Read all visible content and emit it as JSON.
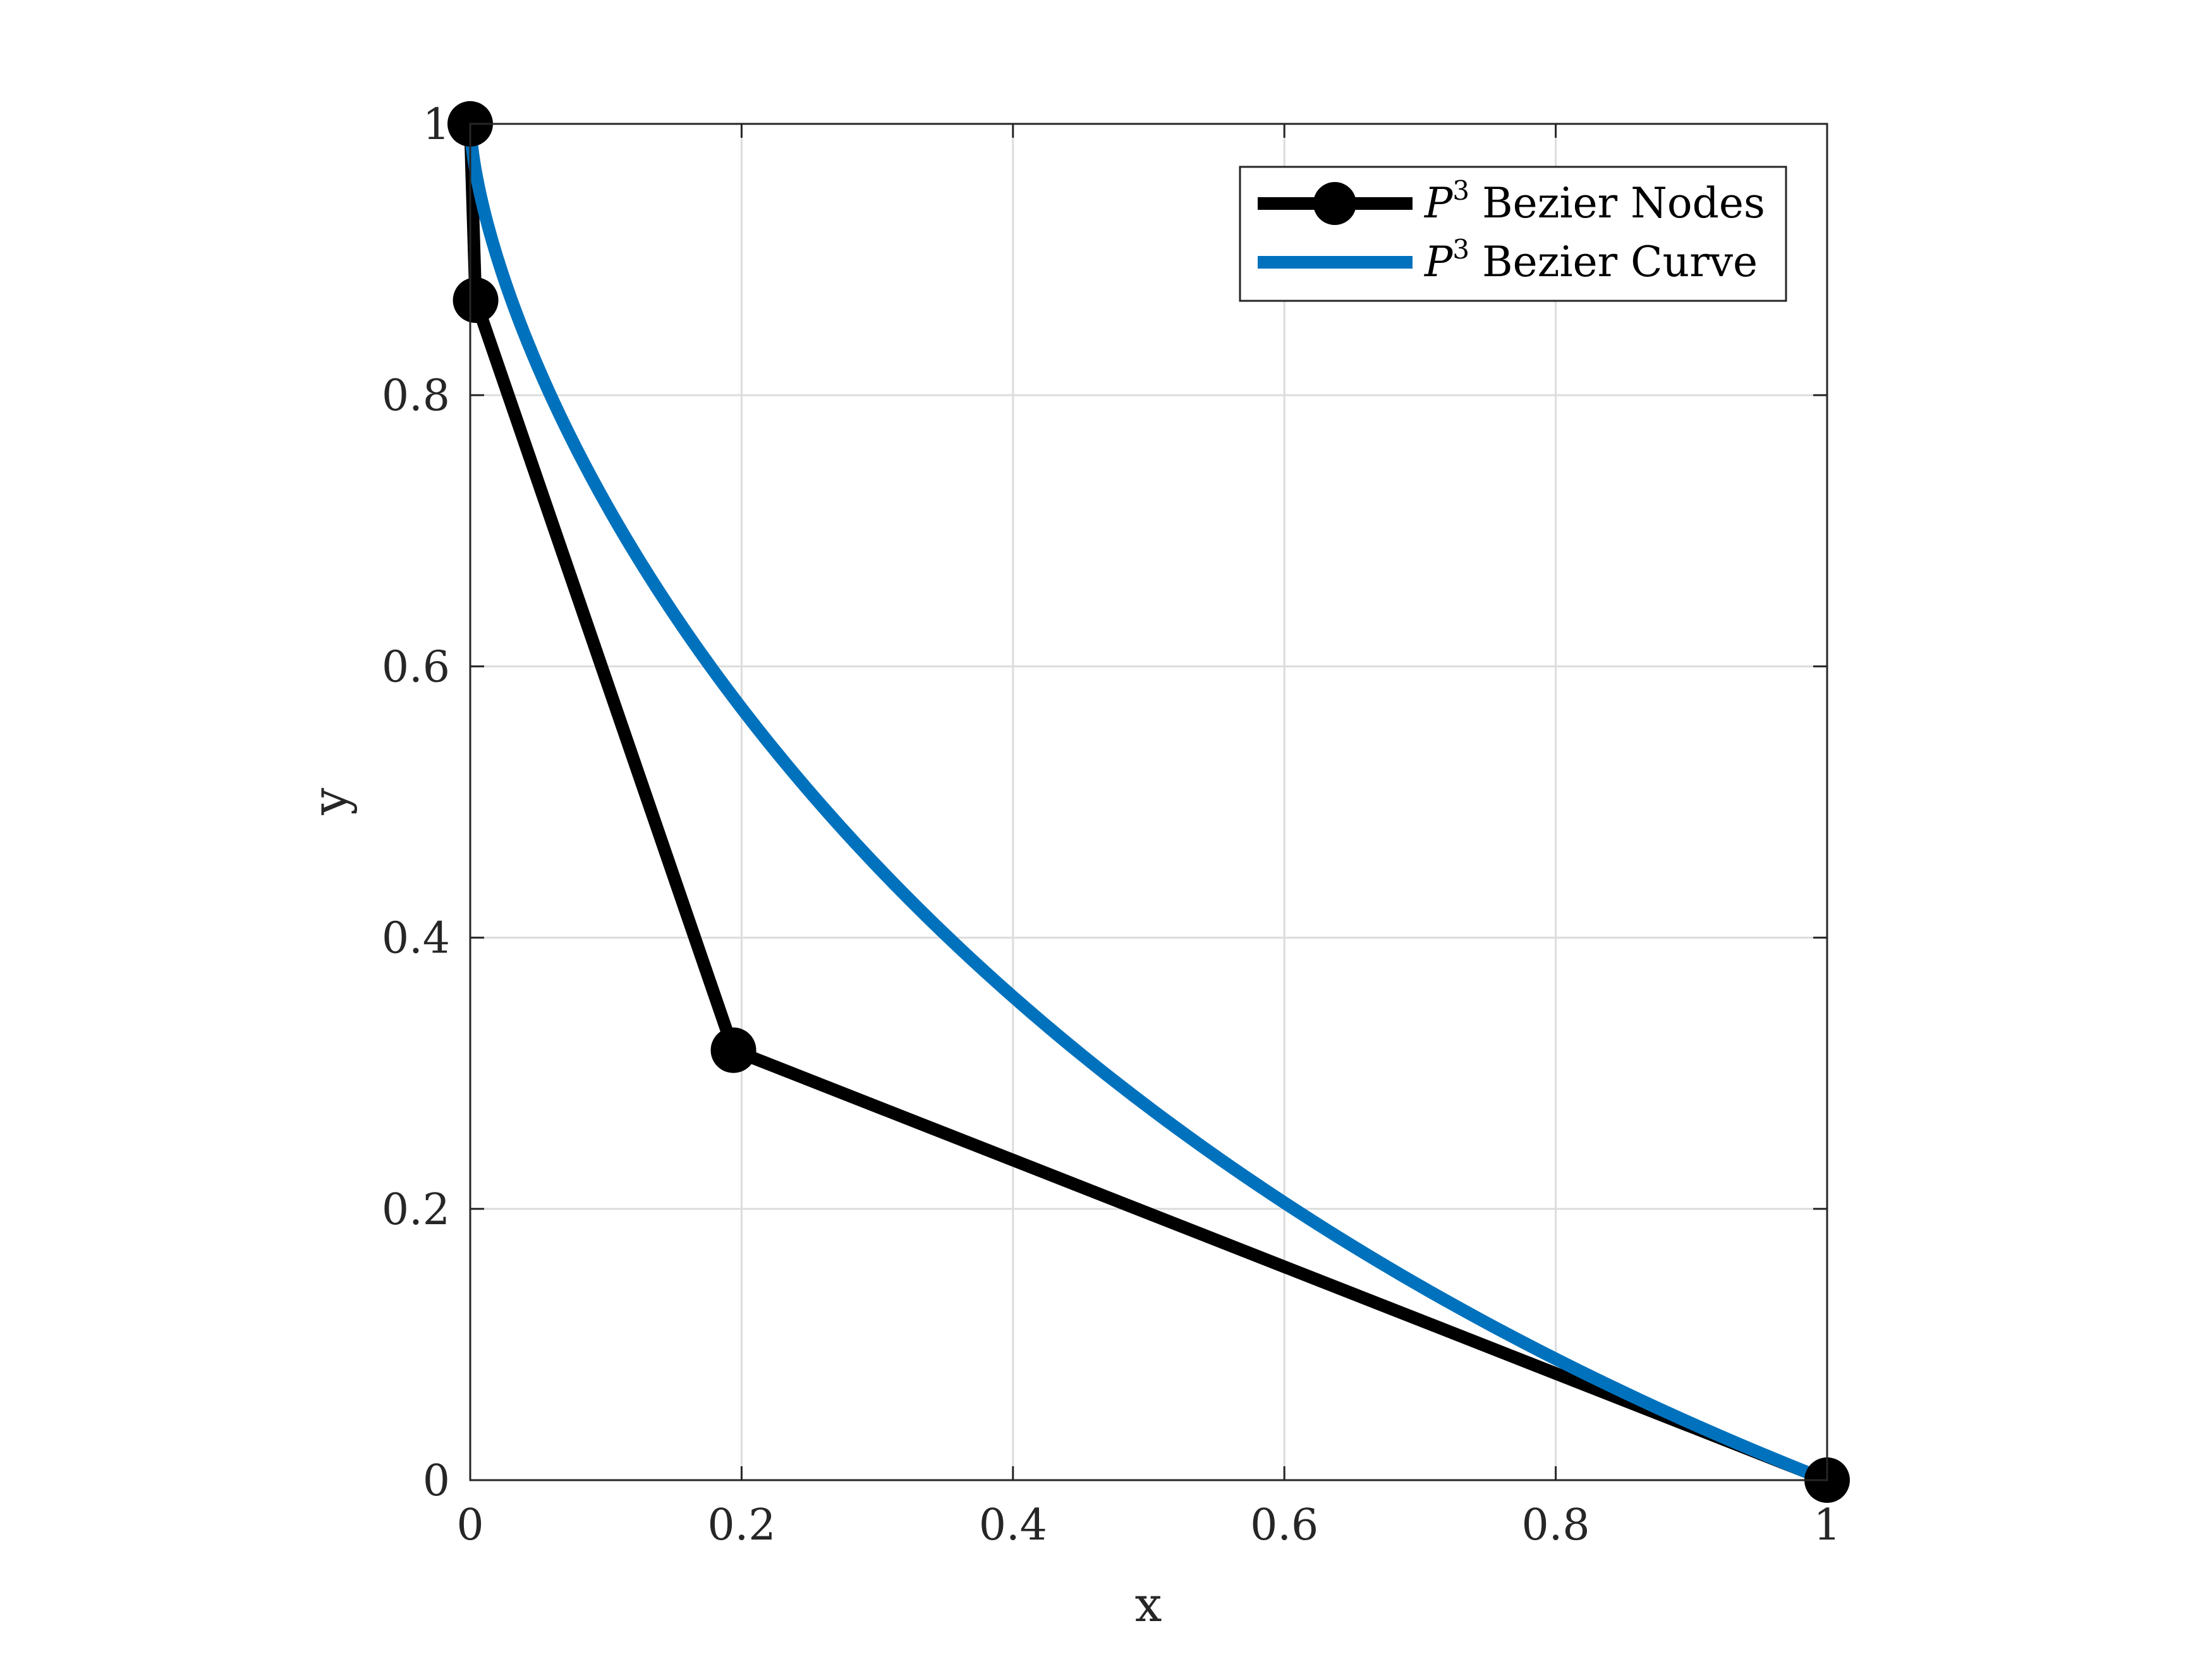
{
  "chart_data": {
    "type": "line",
    "xlabel": "x",
    "ylabel": "y",
    "xlim": [
      0,
      1
    ],
    "ylim": [
      0,
      1
    ],
    "xticks": [
      0,
      0.2,
      0.4,
      0.6,
      0.8,
      1
    ],
    "yticks": [
      0,
      0.2,
      0.4,
      0.6,
      0.8,
      1
    ],
    "xtick_labels": [
      "0",
      "0.2",
      "0.4",
      "0.6",
      "0.8",
      "1"
    ],
    "ytick_labels": [
      "0",
      "0.2",
      "0.4",
      "0.6",
      "0.8",
      "1"
    ],
    "grid": true,
    "legend_position": "top-right",
    "series": [
      {
        "name": "P³ Bezier Nodes",
        "legend_symbol": "P",
        "legend_superscript": "3",
        "legend_text": "Bezier Nodes",
        "color": "#000000",
        "marker": "circle",
        "x": [
          0,
          0.004,
          0.194,
          1
        ],
        "y": [
          1,
          0.87,
          0.317,
          0
        ]
      },
      {
        "name": "P³ Bezier Curve",
        "legend_symbol": "P",
        "legend_superscript": "3",
        "legend_text": "Bezier Curve",
        "color": "#0072BD",
        "marker": "none",
        "bezier_control_points": {
          "x": [
            0,
            0.004,
            0.194,
            1
          ],
          "y": [
            1,
            0.87,
            0.317,
            0
          ]
        }
      }
    ]
  }
}
